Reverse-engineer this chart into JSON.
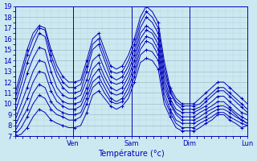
{
  "xlabel": "Température (°c)",
  "bg_color": "#cce8f0",
  "grid_major_color": "#a0bcc8",
  "grid_minor_color": "#b8d4de",
  "line_color": "#0000bb",
  "spine_color": "#0000bb",
  "ylim": [
    7,
    19
  ],
  "ytick_min": 7,
  "ytick_max": 19,
  "xlim": [
    0,
    96
  ],
  "day_ticks": [
    24,
    48,
    72,
    96
  ],
  "day_labels": [
    "Ven",
    "Sam",
    "Dim",
    "Lun"
  ],
  "lines": [
    [
      11.0,
      13.0,
      15.0,
      16.5,
      17.2,
      17.0,
      15.0,
      13.5,
      12.5,
      12.0,
      12.0,
      12.2,
      14.0,
      16.0,
      16.5,
      15.0,
      13.5,
      13.2,
      13.5,
      14.5,
      16.0,
      18.0,
      19.0,
      18.5,
      17.5,
      14.0,
      11.5,
      10.5,
      10.0,
      10.0,
      10.0,
      10.5,
      11.0,
      11.5,
      12.0,
      12.0,
      11.5,
      11.0,
      10.5,
      10.0
    ],
    [
      10.5,
      12.5,
      14.5,
      16.0,
      17.0,
      16.8,
      14.5,
      13.0,
      12.0,
      11.5,
      11.5,
      11.8,
      13.5,
      15.5,
      16.0,
      14.5,
      13.0,
      12.8,
      13.0,
      14.0,
      15.5,
      17.5,
      18.5,
      18.0,
      17.0,
      13.5,
      11.2,
      10.2,
      9.8,
      9.8,
      9.8,
      10.0,
      10.5,
      11.0,
      11.5,
      11.5,
      11.0,
      10.5,
      10.0,
      9.5
    ],
    [
      10.0,
      11.8,
      13.8,
      15.2,
      16.5,
      16.2,
      14.0,
      12.5,
      11.5,
      11.0,
      11.0,
      11.2,
      13.0,
      15.0,
      15.5,
      14.0,
      12.5,
      12.2,
      12.5,
      13.5,
      15.0,
      17.0,
      18.0,
      17.5,
      16.5,
      13.0,
      11.0,
      10.0,
      9.5,
      9.5,
      9.5,
      9.7,
      10.2,
      10.7,
      11.2,
      11.2,
      10.7,
      10.2,
      9.7,
      9.2
    ],
    [
      9.2,
      11.0,
      12.8,
      14.2,
      15.2,
      15.0,
      13.0,
      11.5,
      10.8,
      10.5,
      10.5,
      10.8,
      12.2,
      14.0,
      14.5,
      13.2,
      12.0,
      11.8,
      12.0,
      13.0,
      14.5,
      16.5,
      17.2,
      16.8,
      16.0,
      12.5,
      10.5,
      9.5,
      9.2,
      9.2,
      9.2,
      9.5,
      9.8,
      10.2,
      10.7,
      10.7,
      10.2,
      9.7,
      9.2,
      9.0
    ],
    [
      8.5,
      10.0,
      11.5,
      13.0,
      14.0,
      13.8,
      12.0,
      10.8,
      10.2,
      10.0,
      10.0,
      10.2,
      11.5,
      13.2,
      13.8,
      12.5,
      11.5,
      11.2,
      11.5,
      12.5,
      14.0,
      16.0,
      16.8,
      16.5,
      15.5,
      12.0,
      10.2,
      9.2,
      8.8,
      8.8,
      8.8,
      9.2,
      9.5,
      9.8,
      10.2,
      10.2,
      9.7,
      9.2,
      8.8,
      8.5
    ],
    [
      8.0,
      9.2,
      10.5,
      12.0,
      13.0,
      12.8,
      11.2,
      10.2,
      9.8,
      9.5,
      9.5,
      9.8,
      11.0,
      12.5,
      13.2,
      12.0,
      11.0,
      10.8,
      11.0,
      12.0,
      13.5,
      15.5,
      16.2,
      16.0,
      15.0,
      11.5,
      10.0,
      9.0,
      8.5,
      8.5,
      8.5,
      8.8,
      9.2,
      9.5,
      9.8,
      9.8,
      9.5,
      9.0,
      8.5,
      8.2
    ],
    [
      7.5,
      8.5,
      9.5,
      11.0,
      11.8,
      11.5,
      10.2,
      9.5,
      9.2,
      9.0,
      9.0,
      9.2,
      10.5,
      12.0,
      12.5,
      11.5,
      10.5,
      10.2,
      10.5,
      11.5,
      13.0,
      15.0,
      15.8,
      15.5,
      14.5,
      11.0,
      9.5,
      8.5,
      8.2,
      8.2,
      8.2,
      8.5,
      8.8,
      9.2,
      9.5,
      9.5,
      9.2,
      8.8,
      8.5,
      8.2
    ],
    [
      7.2,
      7.8,
      8.8,
      10.0,
      10.8,
      10.5,
      9.5,
      9.0,
      8.8,
      8.5,
      8.5,
      8.8,
      10.0,
      11.5,
      12.0,
      11.0,
      10.2,
      10.0,
      10.2,
      11.0,
      12.5,
      14.5,
      15.0,
      14.8,
      14.0,
      10.5,
      9.2,
      8.2,
      7.8,
      7.8,
      7.8,
      8.2,
      8.5,
      8.8,
      9.2,
      9.2,
      8.8,
      8.5,
      8.2,
      8.0
    ],
    [
      7.0,
      7.2,
      7.8,
      8.8,
      9.5,
      9.2,
      8.5,
      8.2,
      8.0,
      7.8,
      7.8,
      8.0,
      9.2,
      10.8,
      11.2,
      10.5,
      9.8,
      9.5,
      9.8,
      10.5,
      12.0,
      13.8,
      14.2,
      14.0,
      13.2,
      10.0,
      8.8,
      7.8,
      7.5,
      7.5,
      7.5,
      7.8,
      8.2,
      8.5,
      9.0,
      9.0,
      8.5,
      8.2,
      7.8,
      8.0
    ]
  ],
  "n_points": 40,
  "xlabel_fontsize": 7,
  "tick_fontsize": 6
}
